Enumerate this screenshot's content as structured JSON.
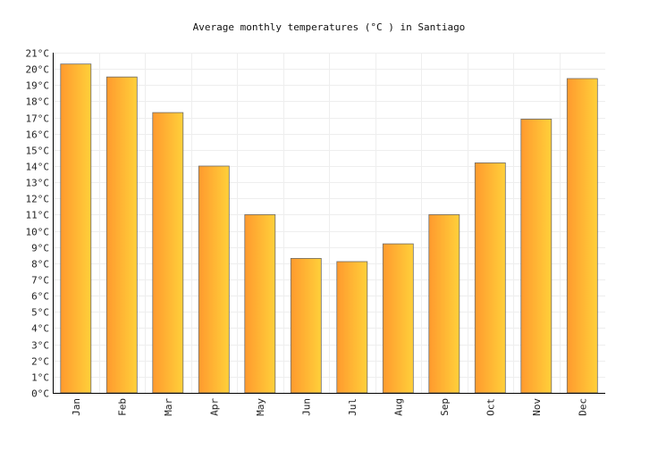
{
  "chart_data": {
    "type": "bar",
    "title": "Average monthly temperatures (°C ) in Santiago",
    "xlabel": "",
    "ylabel": "",
    "categories": [
      "Jan",
      "Feb",
      "Mar",
      "Apr",
      "May",
      "Jun",
      "Jul",
      "Aug",
      "Sep",
      "Oct",
      "Nov",
      "Dec"
    ],
    "values": [
      20.3,
      19.5,
      17.3,
      14.0,
      11.0,
      8.3,
      8.1,
      9.2,
      11.0,
      14.2,
      16.9,
      19.4
    ],
    "ylim": [
      0,
      21
    ],
    "y_tick_step": 1,
    "y_unit": "°C",
    "grid": true,
    "legend": "none",
    "colors": {
      "bar_gradient_start": "#ff9a2e",
      "bar_gradient_end": "#ffd03a",
      "bar_stroke": "#6b6b6b",
      "grid": "#eeeeee",
      "axis": "#000000"
    }
  }
}
